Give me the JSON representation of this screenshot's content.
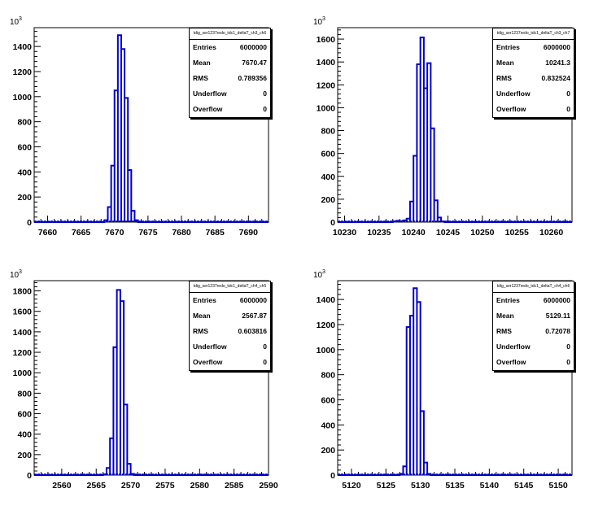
{
  "chart_data": [
    {
      "type": "bar",
      "title": "tdig_ser1237redo_tdc1_deltaT_ch3_ch6",
      "xlim": [
        7658,
        7693
      ],
      "ylim": [
        0,
        1550
      ],
      "xticks": [
        7660,
        7665,
        7670,
        7675,
        7680,
        7685,
        7690
      ],
      "yticks": [
        0,
        200,
        400,
        600,
        800,
        1000,
        1200,
        1400
      ],
      "y_exponent": "10",
      "y_exponent_power": "3",
      "bin_width": 0.5,
      "bins": [
        {
          "x": 7668.5,
          "y": 15
        },
        {
          "x": 7669,
          "y": 120
        },
        {
          "x": 7669.5,
          "y": 450
        },
        {
          "x": 7670,
          "y": 1050
        },
        {
          "x": 7670.5,
          "y": 1490
        },
        {
          "x": 7671,
          "y": 1380
        },
        {
          "x": 7671.5,
          "y": 990
        },
        {
          "x": 7672,
          "y": 415
        },
        {
          "x": 7672.5,
          "y": 90
        },
        {
          "x": 7673,
          "y": 15
        }
      ],
      "color": "#0000cc",
      "stats": {
        "rows": [
          {
            "label": "Entries",
            "value": "6000000"
          },
          {
            "label": "Mean",
            "value": "7670.47"
          },
          {
            "label": "RMS",
            "value": "0.789356"
          },
          {
            "label": "Underflow",
            "value": "0"
          },
          {
            "label": "Overflow",
            "value": "0"
          }
        ]
      }
    },
    {
      "type": "bar",
      "title": "tdig_ser1237redo_tdc1_deltaT_ch3_ch7",
      "xlim": [
        10229,
        10263
      ],
      "ylim": [
        0,
        1700
      ],
      "xticks": [
        10230,
        10235,
        10240,
        10245,
        10250,
        10255,
        10260
      ],
      "yticks": [
        0,
        200,
        400,
        600,
        800,
        1000,
        1200,
        1400,
        1600
      ],
      "y_exponent": "10",
      "y_exponent_power": "3",
      "bin_width": 0.5,
      "bins": [
        {
          "x": 10237,
          "y": 5
        },
        {
          "x": 10237.5,
          "y": 12
        },
        {
          "x": 10238,
          "y": 8
        },
        {
          "x": 10238.5,
          "y": 15
        },
        {
          "x": 10239,
          "y": 30
        },
        {
          "x": 10239.5,
          "y": 180
        },
        {
          "x": 10240,
          "y": 580
        },
        {
          "x": 10240.5,
          "y": 1380
        },
        {
          "x": 10241,
          "y": 1615
        },
        {
          "x": 10241.5,
          "y": 1170
        },
        {
          "x": 10242,
          "y": 1390
        },
        {
          "x": 10242.5,
          "y": 820
        },
        {
          "x": 10243,
          "y": 190
        },
        {
          "x": 10243.5,
          "y": 40
        },
        {
          "x": 10244,
          "y": 5
        }
      ],
      "color": "#0000cc",
      "stats": {
        "rows": [
          {
            "label": "Entries",
            "value": "6000000"
          },
          {
            "label": "Mean",
            "value": "10241.3"
          },
          {
            "label": "RMS",
            "value": "0.832524"
          },
          {
            "label": "Underflow",
            "value": "0"
          },
          {
            "label": "Overflow",
            "value": "0"
          }
        ]
      }
    },
    {
      "type": "bar",
      "title": "tdig_ser1237redo_tdc1_deltaT_ch4_ch5",
      "xlim": [
        2556,
        2590
      ],
      "ylim": [
        0,
        1900
      ],
      "xticks": [
        2560,
        2565,
        2570,
        2575,
        2580,
        2585,
        2590
      ],
      "yticks": [
        0,
        200,
        400,
        600,
        800,
        1000,
        1200,
        1400,
        1600,
        1800
      ],
      "y_exponent": "10",
      "y_exponent_power": "3",
      "bin_width": 0.5,
      "bins": [
        {
          "x": 2566,
          "y": 8
        },
        {
          "x": 2566.5,
          "y": 70
        },
        {
          "x": 2567,
          "y": 360
        },
        {
          "x": 2567.5,
          "y": 1250
        },
        {
          "x": 2568,
          "y": 1810
        },
        {
          "x": 2568.5,
          "y": 1700
        },
        {
          "x": 2569,
          "y": 690
        },
        {
          "x": 2569.5,
          "y": 110
        },
        {
          "x": 2570,
          "y": 12
        }
      ],
      "color": "#0000cc",
      "stats": {
        "rows": [
          {
            "label": "Entries",
            "value": "6000000"
          },
          {
            "label": "Mean",
            "value": "2567.87"
          },
          {
            "label": "RMS",
            "value": "0.603816"
          },
          {
            "label": "Underflow",
            "value": "0"
          },
          {
            "label": "Overflow",
            "value": "0"
          }
        ]
      }
    },
    {
      "type": "bar",
      "title": "tdig_ser1237redo_tdc1_deltaT_ch4_ch6",
      "xlim": [
        5118,
        5152
      ],
      "ylim": [
        0,
        1550
      ],
      "xticks": [
        5120,
        5125,
        5130,
        5135,
        5140,
        5145,
        5150
      ],
      "yticks": [
        0,
        200,
        400,
        600,
        800,
        1000,
        1200,
        1400
      ],
      "y_exponent": "10",
      "y_exponent_power": "3",
      "bin_width": 0.5,
      "bins": [
        {
          "x": 5127,
          "y": 10
        },
        {
          "x": 5127.5,
          "y": 70
        },
        {
          "x": 5128,
          "y": 1180
        },
        {
          "x": 5128.5,
          "y": 1270
        },
        {
          "x": 5129,
          "y": 1490
        },
        {
          "x": 5129.5,
          "y": 1380
        },
        {
          "x": 5130,
          "y": 510
        },
        {
          "x": 5130.5,
          "y": 100
        },
        {
          "x": 5131,
          "y": 10
        }
      ],
      "color": "#0000cc",
      "stats": {
        "rows": [
          {
            "label": "Entries",
            "value": "6000000"
          },
          {
            "label": "Mean",
            "value": "5129.11"
          },
          {
            "label": "RMS",
            "value": "0.72078"
          },
          {
            "label": "Underflow",
            "value": "0"
          },
          {
            "label": "Overflow",
            "value": "0"
          }
        ]
      }
    }
  ]
}
